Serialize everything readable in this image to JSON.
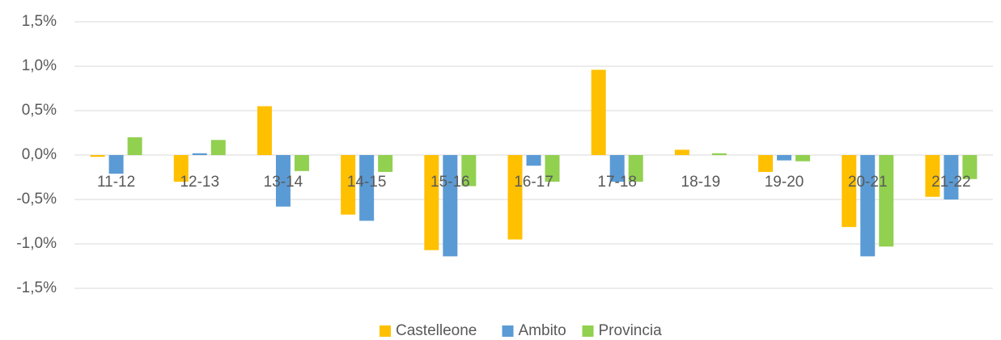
{
  "chart_data": {
    "type": "bar",
    "categories": [
      "11-12",
      "12-13",
      "13-14",
      "14-15",
      "15-16",
      "16-17",
      "17-18",
      "18-19",
      "19-20",
      "20-21",
      "21-22"
    ],
    "series": [
      {
        "name": "Castelleone",
        "color": "#ffc000",
        "values": [
          -0.02,
          -0.3,
          0.55,
          -0.67,
          -1.07,
          -0.95,
          0.96,
          0.06,
          -0.19,
          -0.81,
          -0.47
        ]
      },
      {
        "name": "Ambito",
        "color": "#5b9bd5",
        "values": [
          -0.21,
          0.02,
          -0.58,
          -0.74,
          -1.14,
          -0.12,
          -0.3,
          0.0,
          -0.06,
          -1.14,
          -0.5
        ]
      },
      {
        "name": "Provincia",
        "color": "#92d050",
        "values": [
          0.2,
          0.17,
          -0.18,
          -0.19,
          -0.35,
          -0.3,
          -0.3,
          0.02,
          -0.07,
          -1.03,
          -0.27
        ]
      }
    ],
    "ylim": [
      -1.5,
      1.5
    ],
    "yticks": [
      {
        "value": -1.5,
        "label": "-1,5%"
      },
      {
        "value": -1.0,
        "label": "-1,0%"
      },
      {
        "value": -0.5,
        "label": "-0,5%"
      },
      {
        "value": 0.0,
        "label": "0,0%"
      },
      {
        "value": 0.5,
        "label": "0,5%"
      },
      {
        "value": 1.0,
        "label": "1,0%"
      },
      {
        "value": 1.5,
        "label": "1,5%"
      }
    ],
    "grid": true,
    "legend": "bottom"
  }
}
